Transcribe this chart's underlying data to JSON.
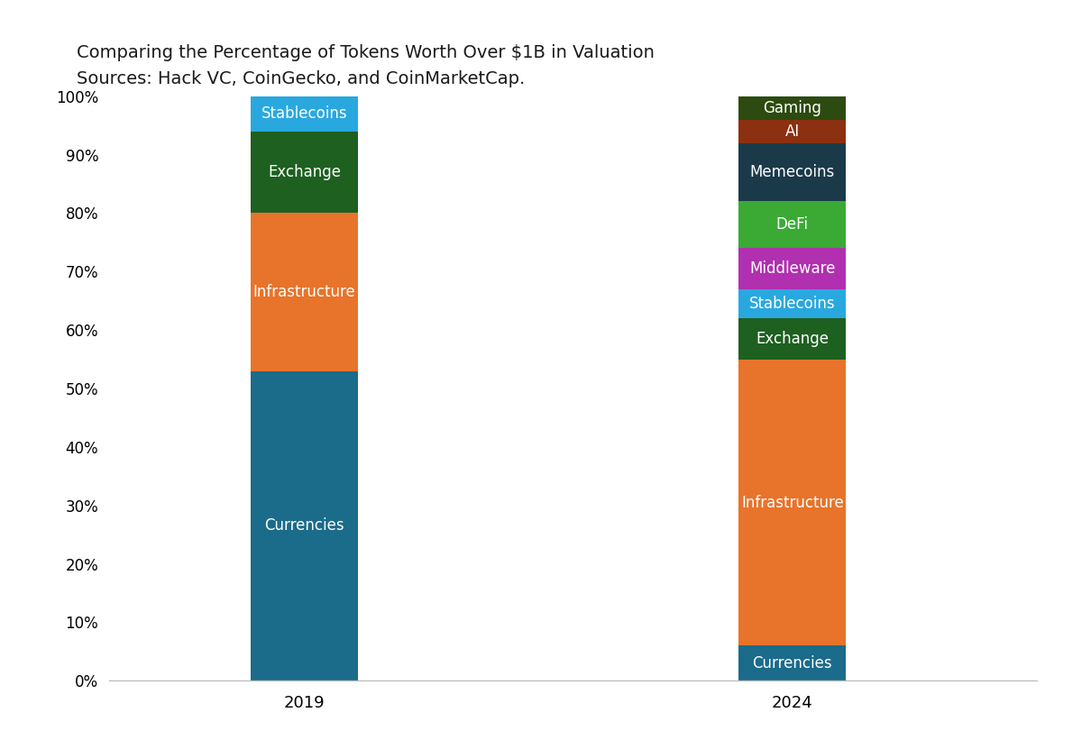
{
  "title_line1": "Comparing the Percentage of Tokens Worth Over $1B in Valuation",
  "title_line2": "Sources: Hack VC, CoinGecko, and CoinMarketCap.",
  "years": [
    "2019",
    "2024"
  ],
  "segments_2019": [
    {
      "label": "Currencies",
      "value": 53,
      "color": "#1b6b8a"
    },
    {
      "label": "Infrastructure",
      "value": 27,
      "color": "#e8732a"
    },
    {
      "label": "Exchange",
      "value": 14,
      "color": "#1e6020"
    },
    {
      "label": "Stablecoins",
      "value": 6,
      "color": "#29a8e0"
    }
  ],
  "segments_2024": [
    {
      "label": "Currencies",
      "value": 6,
      "color": "#1b6b8a"
    },
    {
      "label": "Infrastructure",
      "value": 49,
      "color": "#e8732a"
    },
    {
      "label": "Exchange",
      "value": 7,
      "color": "#1e6020"
    },
    {
      "label": "Stablecoins",
      "value": 5,
      "color": "#29a8e0"
    },
    {
      "label": "Middleware",
      "value": 7,
      "color": "#b030b0"
    },
    {
      "label": "DeFi",
      "value": 8,
      "color": "#3aaa35"
    },
    {
      "label": "Memecoins",
      "value": 10,
      "color": "#1a3a4a"
    },
    {
      "label": "AI",
      "value": 4,
      "color": "#8b3010"
    },
    {
      "label": "Gaming",
      "value": 4,
      "color": "#2d4a10"
    }
  ],
  "background_color": "#ffffff",
  "text_color": "white",
  "label_fontsize": 12,
  "title_fontsize": 14,
  "bar_width": 0.22,
  "x_2019": 1,
  "x_2024": 2,
  "xlim": [
    0.6,
    2.5
  ],
  "ylim": [
    0,
    100
  ]
}
